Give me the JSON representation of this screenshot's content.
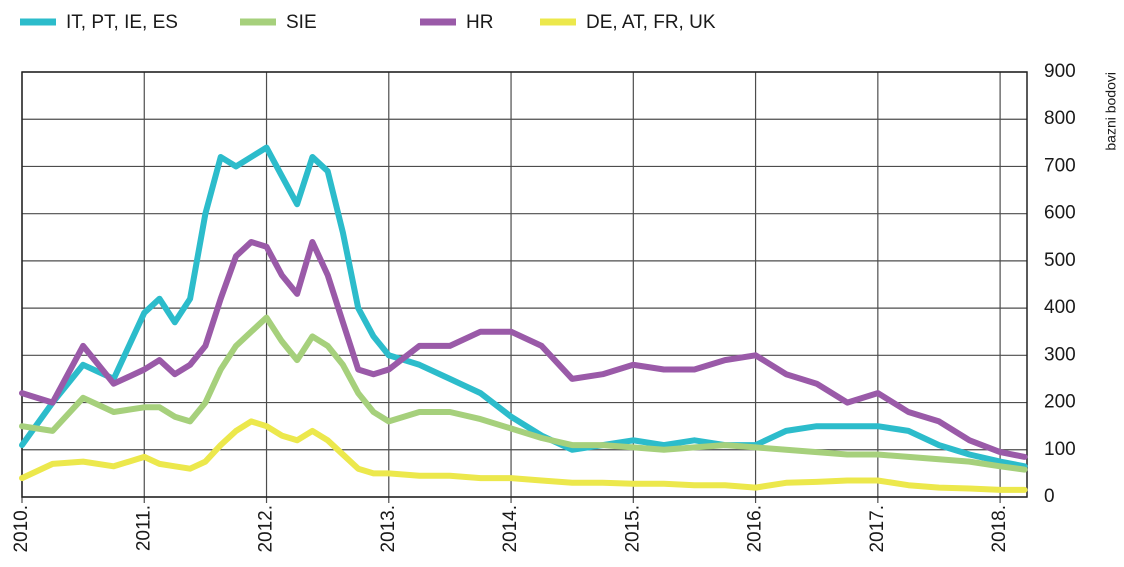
{
  "chart_data": {
    "type": "line",
    "y_label": "bazni bodovi",
    "x": [
      2010,
      2010.25,
      2010.5,
      2010.75,
      2011,
      2011.125,
      2011.25,
      2011.375,
      2011.5,
      2011.625,
      2011.75,
      2011.875,
      2012,
      2012.125,
      2012.25,
      2012.375,
      2012.5,
      2012.625,
      2012.75,
      2012.875,
      2013,
      2013.25,
      2013.5,
      2013.75,
      2014,
      2014.25,
      2014.5,
      2014.75,
      2015,
      2015.25,
      2015.5,
      2015.75,
      2016,
      2016.25,
      2016.5,
      2016.75,
      2017,
      2017.25,
      2017.5,
      2017.75,
      2018,
      2018.2
    ],
    "series": [
      {
        "name": "IT, PT, IE, ES",
        "color": "#2cbccb",
        "values": [
          110,
          200,
          280,
          250,
          390,
          420,
          370,
          420,
          600,
          720,
          700,
          720,
          740,
          680,
          620,
          720,
          690,
          560,
          400,
          340,
          300,
          280,
          250,
          220,
          170,
          130,
          100,
          110,
          120,
          110,
          120,
          110,
          110,
          140,
          150,
          150,
          150,
          140,
          110,
          90,
          75,
          65
        ]
      },
      {
        "name": "SIE",
        "color": "#a6d07c",
        "values": [
          150,
          140,
          210,
          180,
          190,
          190,
          170,
          160,
          200,
          270,
          320,
          350,
          380,
          330,
          290,
          340,
          320,
          280,
          220,
          180,
          160,
          180,
          180,
          165,
          145,
          125,
          110,
          110,
          105,
          100,
          105,
          110,
          105,
          100,
          95,
          90,
          90,
          85,
          80,
          75,
          65,
          58
        ]
      },
      {
        "name": "HR",
        "color": "#9a5aa8",
        "values": [
          220,
          200,
          320,
          240,
          270,
          290,
          260,
          280,
          320,
          420,
          510,
          540,
          530,
          470,
          430,
          540,
          470,
          370,
          270,
          260,
          270,
          320,
          320,
          350,
          350,
          320,
          250,
          260,
          280,
          270,
          270,
          290,
          300,
          260,
          240,
          200,
          220,
          180,
          160,
          120,
          95,
          85
        ]
      },
      {
        "name": "DE, AT, FR, UK",
        "color": "#ece84c",
        "values": [
          40,
          70,
          75,
          65,
          85,
          70,
          65,
          60,
          75,
          110,
          140,
          160,
          150,
          130,
          120,
          140,
          120,
          90,
          60,
          50,
          50,
          45,
          45,
          40,
          40,
          35,
          30,
          30,
          28,
          28,
          25,
          25,
          20,
          30,
          32,
          35,
          35,
          25,
          20,
          18,
          15,
          15
        ]
      }
    ],
    "xlim": [
      2010,
      2018.22
    ],
    "xticks": [
      {
        "value": 2010,
        "label": "2010."
      },
      {
        "value": 2011,
        "label": "2011."
      },
      {
        "value": 2012,
        "label": "2012."
      },
      {
        "value": 2013,
        "label": "2013."
      },
      {
        "value": 2014,
        "label": "2014."
      },
      {
        "value": 2015,
        "label": "2015."
      },
      {
        "value": 2016,
        "label": "2016."
      },
      {
        "value": 2017,
        "label": "2017."
      },
      {
        "value": 2018,
        "label": "2018."
      }
    ],
    "ylim": [
      0,
      900
    ],
    "yticks": [
      0,
      100,
      200,
      300,
      400,
      500,
      600,
      700,
      800,
      900
    ],
    "grid": true
  }
}
